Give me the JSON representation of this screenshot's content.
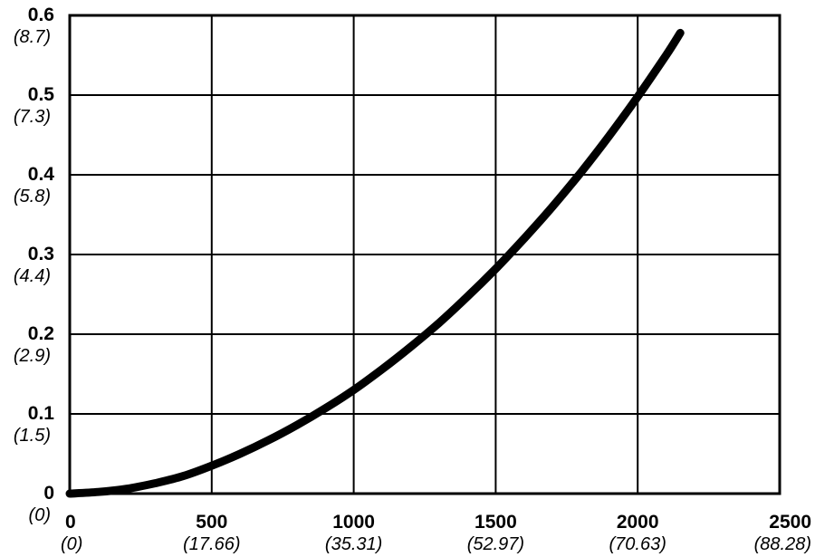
{
  "chart_data": {
    "type": "line",
    "title": "",
    "xlabel": "",
    "ylabel": "",
    "xlim": [
      0,
      2500
    ],
    "ylim": [
      0,
      0.6
    ],
    "grid": true,
    "legend": "none",
    "x_ticks": [
      {
        "value": 0,
        "label": "0",
        "sublabel": "(0)"
      },
      {
        "value": 500,
        "label": "500",
        "sublabel": "(17.66)"
      },
      {
        "value": 1000,
        "label": "1000",
        "sublabel": "(35.31)"
      },
      {
        "value": 1500,
        "label": "1500",
        "sublabel": "(52.97)"
      },
      {
        "value": 2000,
        "label": "2000",
        "sublabel": "(70.63)"
      },
      {
        "value": 2500,
        "label": "2500",
        "sublabel": "(88.28)"
      }
    ],
    "y_ticks": [
      {
        "value": 0,
        "label": "0",
        "sublabel": "(0)"
      },
      {
        "value": 0.1,
        "label": "0.1",
        "sublabel": "(1.5)"
      },
      {
        "value": 0.2,
        "label": "0.2",
        "sublabel": "(2.9)"
      },
      {
        "value": 0.3,
        "label": "0.3",
        "sublabel": "(4.4)"
      },
      {
        "value": 0.4,
        "label": "0.4",
        "sublabel": "(5.8)"
      },
      {
        "value": 0.5,
        "label": "0.5",
        "sublabel": "(7.3)"
      },
      {
        "value": 0.6,
        "label": "0.6",
        "sublabel": "(8.7)"
      }
    ],
    "series": [
      {
        "color": "#000000",
        "x": [
          0,
          100,
          200,
          300,
          400,
          500,
          600,
          700,
          800,
          900,
          1000,
          1100,
          1200,
          1300,
          1400,
          1500,
          1600,
          1700,
          1800,
          1900,
          2000,
          2100,
          2150
        ],
        "y": [
          0,
          0.002,
          0.006,
          0.013,
          0.022,
          0.035,
          0.05,
          0.067,
          0.086,
          0.107,
          0.13,
          0.156,
          0.184,
          0.214,
          0.247,
          0.282,
          0.32,
          0.36,
          0.403,
          0.449,
          0.498,
          0.55,
          0.578
        ]
      }
    ]
  }
}
